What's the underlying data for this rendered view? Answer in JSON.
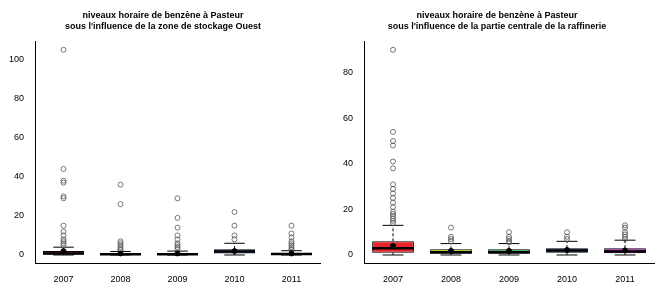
{
  "chart_data": [
    {
      "type": "boxplot",
      "title": [
        "niveaux horaire de benzène à Pasteur",
        "sous l'influence de la zone de stockage Ouest"
      ],
      "categories": [
        "2007",
        "2008",
        "2009",
        "2010",
        "2011"
      ],
      "whisker_low": [
        0,
        0,
        0,
        0,
        0
      ],
      "q1": [
        0.3,
        0.2,
        0.2,
        0.8,
        0.2
      ],
      "median": [
        0.8,
        0.4,
        0.4,
        1.8,
        0.5
      ],
      "q3": [
        2,
        0.8,
        0.9,
        3,
        1
      ],
      "whisker_high": [
        4,
        1.8,
        2,
        6,
        2.2
      ],
      "means": [
        2,
        0.8,
        0.8,
        2,
        0.8
      ],
      "outliers": [
        [
          105,
          44,
          38,
          37,
          30,
          29,
          15,
          12,
          10,
          8,
          7,
          6,
          5
        ],
        [
          36,
          26,
          7,
          6,
          5,
          4,
          3,
          2.5
        ],
        [
          29,
          19,
          14,
          10,
          8,
          6,
          5,
          4,
          3
        ],
        [
          22,
          15,
          10,
          8
        ],
        [
          15,
          11,
          9,
          7,
          6,
          5,
          4,
          3,
          2.5
        ]
      ],
      "colors": [
        "#e8262a",
        "#b8d000",
        "#22b14c",
        "#2b5fd9",
        "#b020c0"
      ],
      "ylim": [
        -4.2,
        109.2
      ],
      "yticks": [
        0,
        20,
        40,
        60,
        80,
        100
      ],
      "grid": false
    },
    {
      "type": "boxplot",
      "title": [
        "niveaux horaire de benzène à Pasteur",
        "sous l'influence de la partie centrale de la raffinerie"
      ],
      "categories": [
        "2007",
        "2008",
        "2009",
        "2010",
        "2011"
      ],
      "whisker_low": [
        0,
        0,
        0,
        0,
        0
      ],
      "q1": [
        1,
        0.5,
        0.5,
        1,
        0.8
      ],
      "median": [
        3,
        1.2,
        1.2,
        2,
        1.5
      ],
      "q3": [
        6,
        2.5,
        2.5,
        3,
        3
      ],
      "whisker_high": [
        13,
        5,
        5,
        6,
        6.5
      ],
      "means": [
        4,
        1.8,
        1.8,
        2.2,
        2
      ],
      "outliers": [
        [
          90,
          54,
          50,
          48,
          41,
          38,
          31,
          29,
          27,
          25,
          23,
          21,
          19,
          18,
          17,
          16,
          15,
          14
        ],
        [
          12,
          8,
          7,
          6
        ],
        [
          10,
          8,
          7,
          6,
          5.5
        ],
        [
          10,
          8,
          7
        ],
        [
          13,
          12,
          10,
          9,
          8,
          7
        ]
      ],
      "colors": [
        "#e8262a",
        "#b8d000",
        "#22b14c",
        "#2b5fd9",
        "#b020c0"
      ],
      "ylim": [
        -3.6,
        93.6
      ],
      "yticks": [
        0,
        20,
        40,
        60,
        80
      ],
      "grid": false
    }
  ]
}
